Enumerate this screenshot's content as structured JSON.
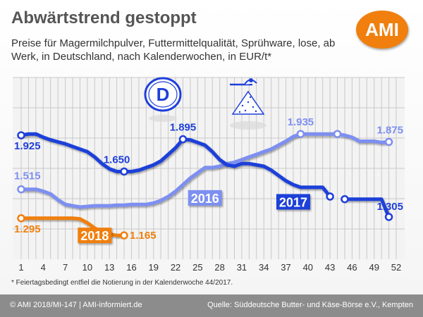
{
  "title": "Abwärtstrend gestoppt",
  "subtitle": "Preise für Magermilchpulver, Futtermittelqualität, Sprühware, lose, ab Werk, in Deutschland, nach Kalenderwochen, in EUR/t*",
  "logo_text": "AMI",
  "country_badge": "D",
  "footnote": "* Feiertagsbedingt entfiel die Notierung in der Kalenderwoche 44/2017.",
  "footer": {
    "left": "© AMI 2018/MI-147 | AMI-informiert.de",
    "right": "Quelle: Süddeutsche Butter- und Käse-Börse e.V., Kempten"
  },
  "colors": {
    "s2016": "#7d8ff0",
    "s2017": "#1f3fd9",
    "s2018": "#f07f0e",
    "marker_fill": "#ffffff",
    "grid": "#c8c8c8",
    "plot_bg": "#f3f3f3",
    "badge_blue": "#1f3fd9"
  },
  "chart_data": {
    "type": "line",
    "xlim": [
      1,
      52
    ],
    "ylim": [
      1000,
      2150
    ],
    "grid": true,
    "x_ticks": [
      1,
      4,
      7,
      10,
      13,
      16,
      19,
      22,
      25,
      28,
      31,
      34,
      37,
      40,
      43,
      46,
      49,
      52
    ],
    "series": [
      {
        "name": "2016",
        "key": "s2016",
        "x": [
          1,
          2,
          3,
          4,
          5,
          6,
          7,
          8,
          9,
          10,
          11,
          12,
          13,
          14,
          15,
          16,
          17,
          18,
          19,
          20,
          21,
          22,
          23,
          24,
          25,
          26,
          27,
          28,
          29,
          30,
          31,
          32,
          33,
          34,
          35,
          36,
          37,
          38,
          39,
          40,
          41,
          42,
          43,
          44,
          45,
          46,
          47,
          48,
          49,
          50,
          51
        ],
        "y": [
          1515,
          1515,
          1515,
          1500,
          1480,
          1435,
          1400,
          1390,
          1380,
          1385,
          1390,
          1390,
          1390,
          1395,
          1395,
          1400,
          1400,
          1400,
          1410,
          1430,
          1460,
          1500,
          1550,
          1600,
          1640,
          1680,
          1680,
          1690,
          1710,
          1720,
          1740,
          1760,
          1780,
          1800,
          1820,
          1850,
          1880,
          1915,
          1935,
          1935,
          1935,
          1935,
          1935,
          1935,
          1925,
          1910,
          1880,
          1880,
          1880,
          1870,
          1875
        ],
        "labels": [
          {
            "x": 1,
            "text": "1.515"
          },
          {
            "x": 39,
            "text": "1.935"
          },
          {
            "x": 51,
            "text": "1.875"
          }
        ],
        "markers": [
          1,
          39,
          44,
          51
        ],
        "tag": "2016",
        "tag_x": 26,
        "tag_y": 1450
      },
      {
        "name": "2017",
        "key": "s2017",
        "x": [
          1,
          2,
          3,
          4,
          5,
          6,
          7,
          8,
          9,
          10,
          11,
          12,
          13,
          14,
          15,
          16,
          17,
          18,
          19,
          20,
          21,
          22,
          23,
          24,
          25,
          26,
          27,
          28,
          29,
          30,
          31,
          32,
          33,
          34,
          35,
          36,
          37,
          38,
          39,
          40,
          41,
          42,
          43,
          null,
          45,
          46,
          47,
          48,
          49,
          50,
          51
        ],
        "y": [
          1925,
          1935,
          1935,
          1910,
          1890,
          1875,
          1860,
          1840,
          1820,
          1800,
          1760,
          1710,
          1670,
          1650,
          1650,
          1650,
          1660,
          1680,
          1700,
          1730,
          1780,
          1830,
          1895,
          1890,
          1870,
          1850,
          1800,
          1740,
          1700,
          1690,
          1710,
          1710,
          1700,
          1690,
          1660,
          1620,
          1580,
          1550,
          1530,
          1530,
          1530,
          1530,
          1460,
          null,
          1440,
          1440,
          1440,
          1440,
          1440,
          1440,
          1305
        ],
        "labels": [
          {
            "x": 1,
            "text": "1.925"
          },
          {
            "x": 14,
            "text": "1.650"
          },
          {
            "x": 23,
            "text": "1.895"
          },
          {
            "x": 51,
            "text": "1.305"
          }
        ],
        "markers": [
          1,
          15,
          23,
          43,
          45,
          51
        ],
        "tag": "2017",
        "tag_x": 38,
        "tag_y": 1420
      },
      {
        "name": "2018",
        "key": "s2018",
        "x": [
          1,
          2,
          3,
          4,
          5,
          6,
          7,
          8,
          9,
          10,
          11,
          12,
          13,
          14,
          15
        ],
        "y": [
          1295,
          1295,
          1295,
          1295,
          1295,
          1295,
          1295,
          1295,
          1290,
          1260,
          1220,
          1190,
          1175,
          1165,
          1165
        ],
        "labels": [
          {
            "x": 1,
            "text": "1.295"
          },
          {
            "x": 15,
            "text": "1.165"
          }
        ],
        "markers": [
          1,
          15
        ],
        "tag": "2018",
        "tag_x": 11,
        "tag_y": 1165
      }
    ]
  }
}
